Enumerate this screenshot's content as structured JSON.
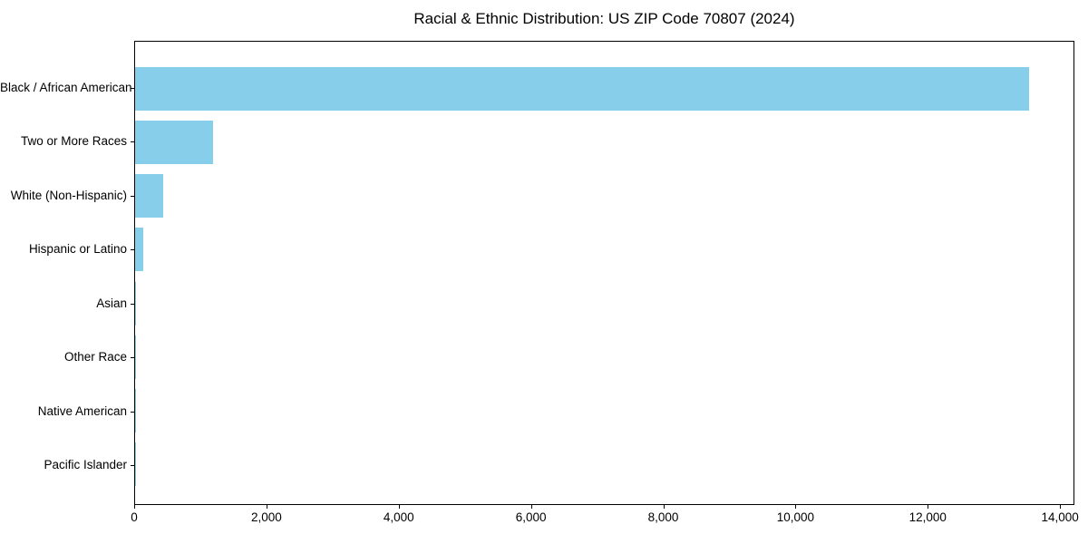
{
  "chart_data": {
    "type": "bar",
    "orientation": "horizontal",
    "title": "Racial & Ethnic Distribution: US ZIP Code 70807 (2024)",
    "categories": [
      "Black / African American",
      "Two or More Races",
      "White (Non-Hispanic)",
      "Hispanic or Latino",
      "Asian",
      "Other Race",
      "Native American",
      "Pacific Islander"
    ],
    "values": [
      13540,
      1180,
      430,
      120,
      15,
      12,
      5,
      2
    ],
    "xlabel": "",
    "ylabel": "",
    "xlim": [
      0,
      14217
    ],
    "x_ticks": [
      0,
      2000,
      4000,
      6000,
      8000,
      10000,
      12000,
      14000
    ],
    "x_tick_labels": [
      "0",
      "2,000",
      "4,000",
      "6,000",
      "8,000",
      "10,000",
      "12,000",
      "14,000"
    ],
    "grid": false,
    "legend": "none",
    "bar_color": "#87CEEB"
  },
  "colors": {
    "bar": "#87CEEB",
    "axis": "#000000",
    "text": "#000000",
    "background": "#FFFFFF"
  }
}
